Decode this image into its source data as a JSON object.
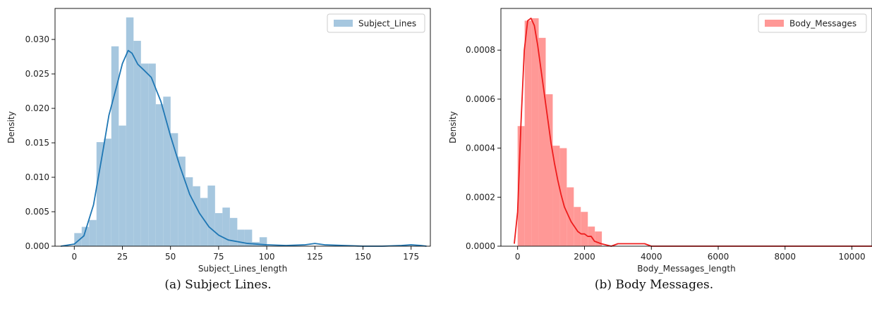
{
  "chart_data": [
    {
      "type": "bar",
      "panel": "a",
      "xlabel": "Subject_Lines_length",
      "ylabel": "Density",
      "xlim": [
        -10,
        185
      ],
      "ylim": [
        0,
        0.0345
      ],
      "xticks": [
        0,
        25,
        50,
        75,
        100,
        125,
        150,
        175
      ],
      "yticks": [
        0.0,
        0.005,
        0.01,
        0.015,
        0.02,
        0.025,
        0.03
      ],
      "ytick_labels": [
        "0.000",
        "0.005",
        "0.010",
        "0.015",
        "0.020",
        "0.025",
        "0.030"
      ],
      "legend": {
        "label": "Subject_Lines",
        "placement": "top-right"
      },
      "hist_color": "#a6c7df",
      "kde_color": "#1f77b4",
      "bin_start": 0,
      "bin_width": 3.85,
      "bin_values": [
        0.0019,
        0.0028,
        0.0038,
        0.0151,
        0.0156,
        0.029,
        0.0175,
        0.0332,
        0.0298,
        0.0265,
        0.0265,
        0.0206,
        0.0217,
        0.0164,
        0.013,
        0.01,
        0.0087,
        0.007,
        0.0088,
        0.0048,
        0.0056,
        0.0041,
        0.0024,
        0.0024,
        0.0006,
        0.0013
      ],
      "kde_x": [
        -7,
        0,
        5,
        10,
        15,
        18,
        22,
        25,
        28,
        30,
        33,
        36,
        40,
        45,
        50,
        55,
        60,
        65,
        70,
        75,
        80,
        90,
        100,
        110,
        120,
        125,
        130,
        140,
        150,
        160,
        170,
        175,
        180,
        183
      ],
      "kde_y": [
        0.0,
        0.0003,
        0.0015,
        0.006,
        0.014,
        0.019,
        0.0232,
        0.0265,
        0.0284,
        0.028,
        0.0264,
        0.0256,
        0.0245,
        0.021,
        0.016,
        0.0115,
        0.0075,
        0.0048,
        0.0028,
        0.0016,
        0.0009,
        0.0004,
        0.0002,
        0.0001,
        0.0002,
        0.0004,
        0.0002,
        0.0001,
        0.0,
        0.0,
        0.0001,
        0.0002,
        0.0001,
        0.0
      ]
    },
    {
      "type": "bar",
      "panel": "b",
      "xlabel": "Body_Messages_length",
      "ylabel": "Density",
      "xlim": [
        -500,
        10600
      ],
      "ylim": [
        0,
        0.00097
      ],
      "xticks": [
        0,
        2000,
        4000,
        6000,
        8000,
        10000
      ],
      "yticks": [
        0.0,
        0.0002,
        0.0004,
        0.0006,
        0.0008
      ],
      "ytick_labels": [
        "0.0000",
        "0.0002",
        "0.0004",
        "0.0006",
        "0.0008"
      ],
      "legend": {
        "label": "Body_Messages",
        "placement": "top-right"
      },
      "hist_color": "#ff9896",
      "kde_color": "#ee1c1c",
      "bin_start": 0,
      "bin_width": 210,
      "bin_values": [
        0.00049,
        0.00092,
        0.00093,
        0.00085,
        0.00062,
        0.00041,
        0.0004,
        0.00024,
        0.00016,
        0.00014,
        8e-05,
        6e-05
      ],
      "kde_x": [
        -100,
        0,
        100,
        200,
        300,
        400,
        500,
        600,
        700,
        800,
        900,
        1000,
        1100,
        1200,
        1300,
        1400,
        1500,
        1600,
        1700,
        1800,
        1900,
        2000,
        2100,
        2200,
        2300,
        2500,
        2800,
        3000,
        3500,
        3800,
        4000,
        5000,
        6000,
        7000,
        8000,
        9000,
        10000,
        10600
      ],
      "kde_y": [
        1e-05,
        0.00014,
        0.0005,
        0.0008,
        0.00092,
        0.00093,
        0.0009,
        0.00082,
        0.00072,
        0.00062,
        0.00052,
        0.00042,
        0.00034,
        0.00027,
        0.00021,
        0.00016,
        0.00013,
        0.0001,
        8e-05,
        6e-05,
        5e-05,
        5e-05,
        4e-05,
        4e-05,
        2e-05,
        1e-05,
        0.0,
        1e-05,
        1e-05,
        1e-05,
        0.0,
        0.0,
        0.0,
        0.0,
        0.0,
        0.0,
        0.0,
        0.0
      ]
    }
  ],
  "captions": {
    "a": "(a) Subject Lines.",
    "b": "(b) Body Messages."
  }
}
